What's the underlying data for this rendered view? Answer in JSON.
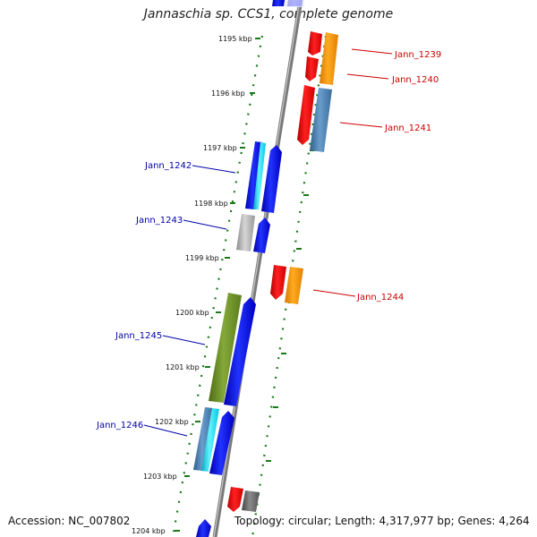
{
  "header": {
    "title": "Jannaschia sp. CCS1, complete genome"
  },
  "footer": {
    "accession": "Accession: NC_007802",
    "summary": "Topology: circular; Length: 4,317,977 bp; Genes: 4,264"
  },
  "scale_ticks": [
    "1195 kbp",
    "1196 kbp",
    "1197 kbp",
    "1198 kbp",
    "1199 kbp",
    "1200 kbp",
    "1201 kbp",
    "1202 kbp",
    "1203 kbp",
    "1204 kbp"
  ],
  "gene_labels": {
    "jann_1239": "Jann_1239",
    "jann_1240": "Jann_1240",
    "jann_1241": "Jann_1241",
    "jann_1242": "Jann_1242",
    "jann_1243": "Jann_1243",
    "jann_1244": "Jann_1244",
    "jann_1245": "Jann_1245",
    "jann_1246": "Jann_1246"
  },
  "colors": {
    "reverse_label": "#cc0000",
    "forward_label": "#0000aa",
    "red": "#ff0000",
    "orange": "#ff9900",
    "steelblue": "#4682b4",
    "blue": "#0000ee",
    "cyan": "#00e5ff",
    "gray": "#aaaaaa",
    "olive": "#6b8e23",
    "dark_gray": "#666666",
    "scale_dots": "#1a7a1a",
    "backbone": "#888888"
  }
}
